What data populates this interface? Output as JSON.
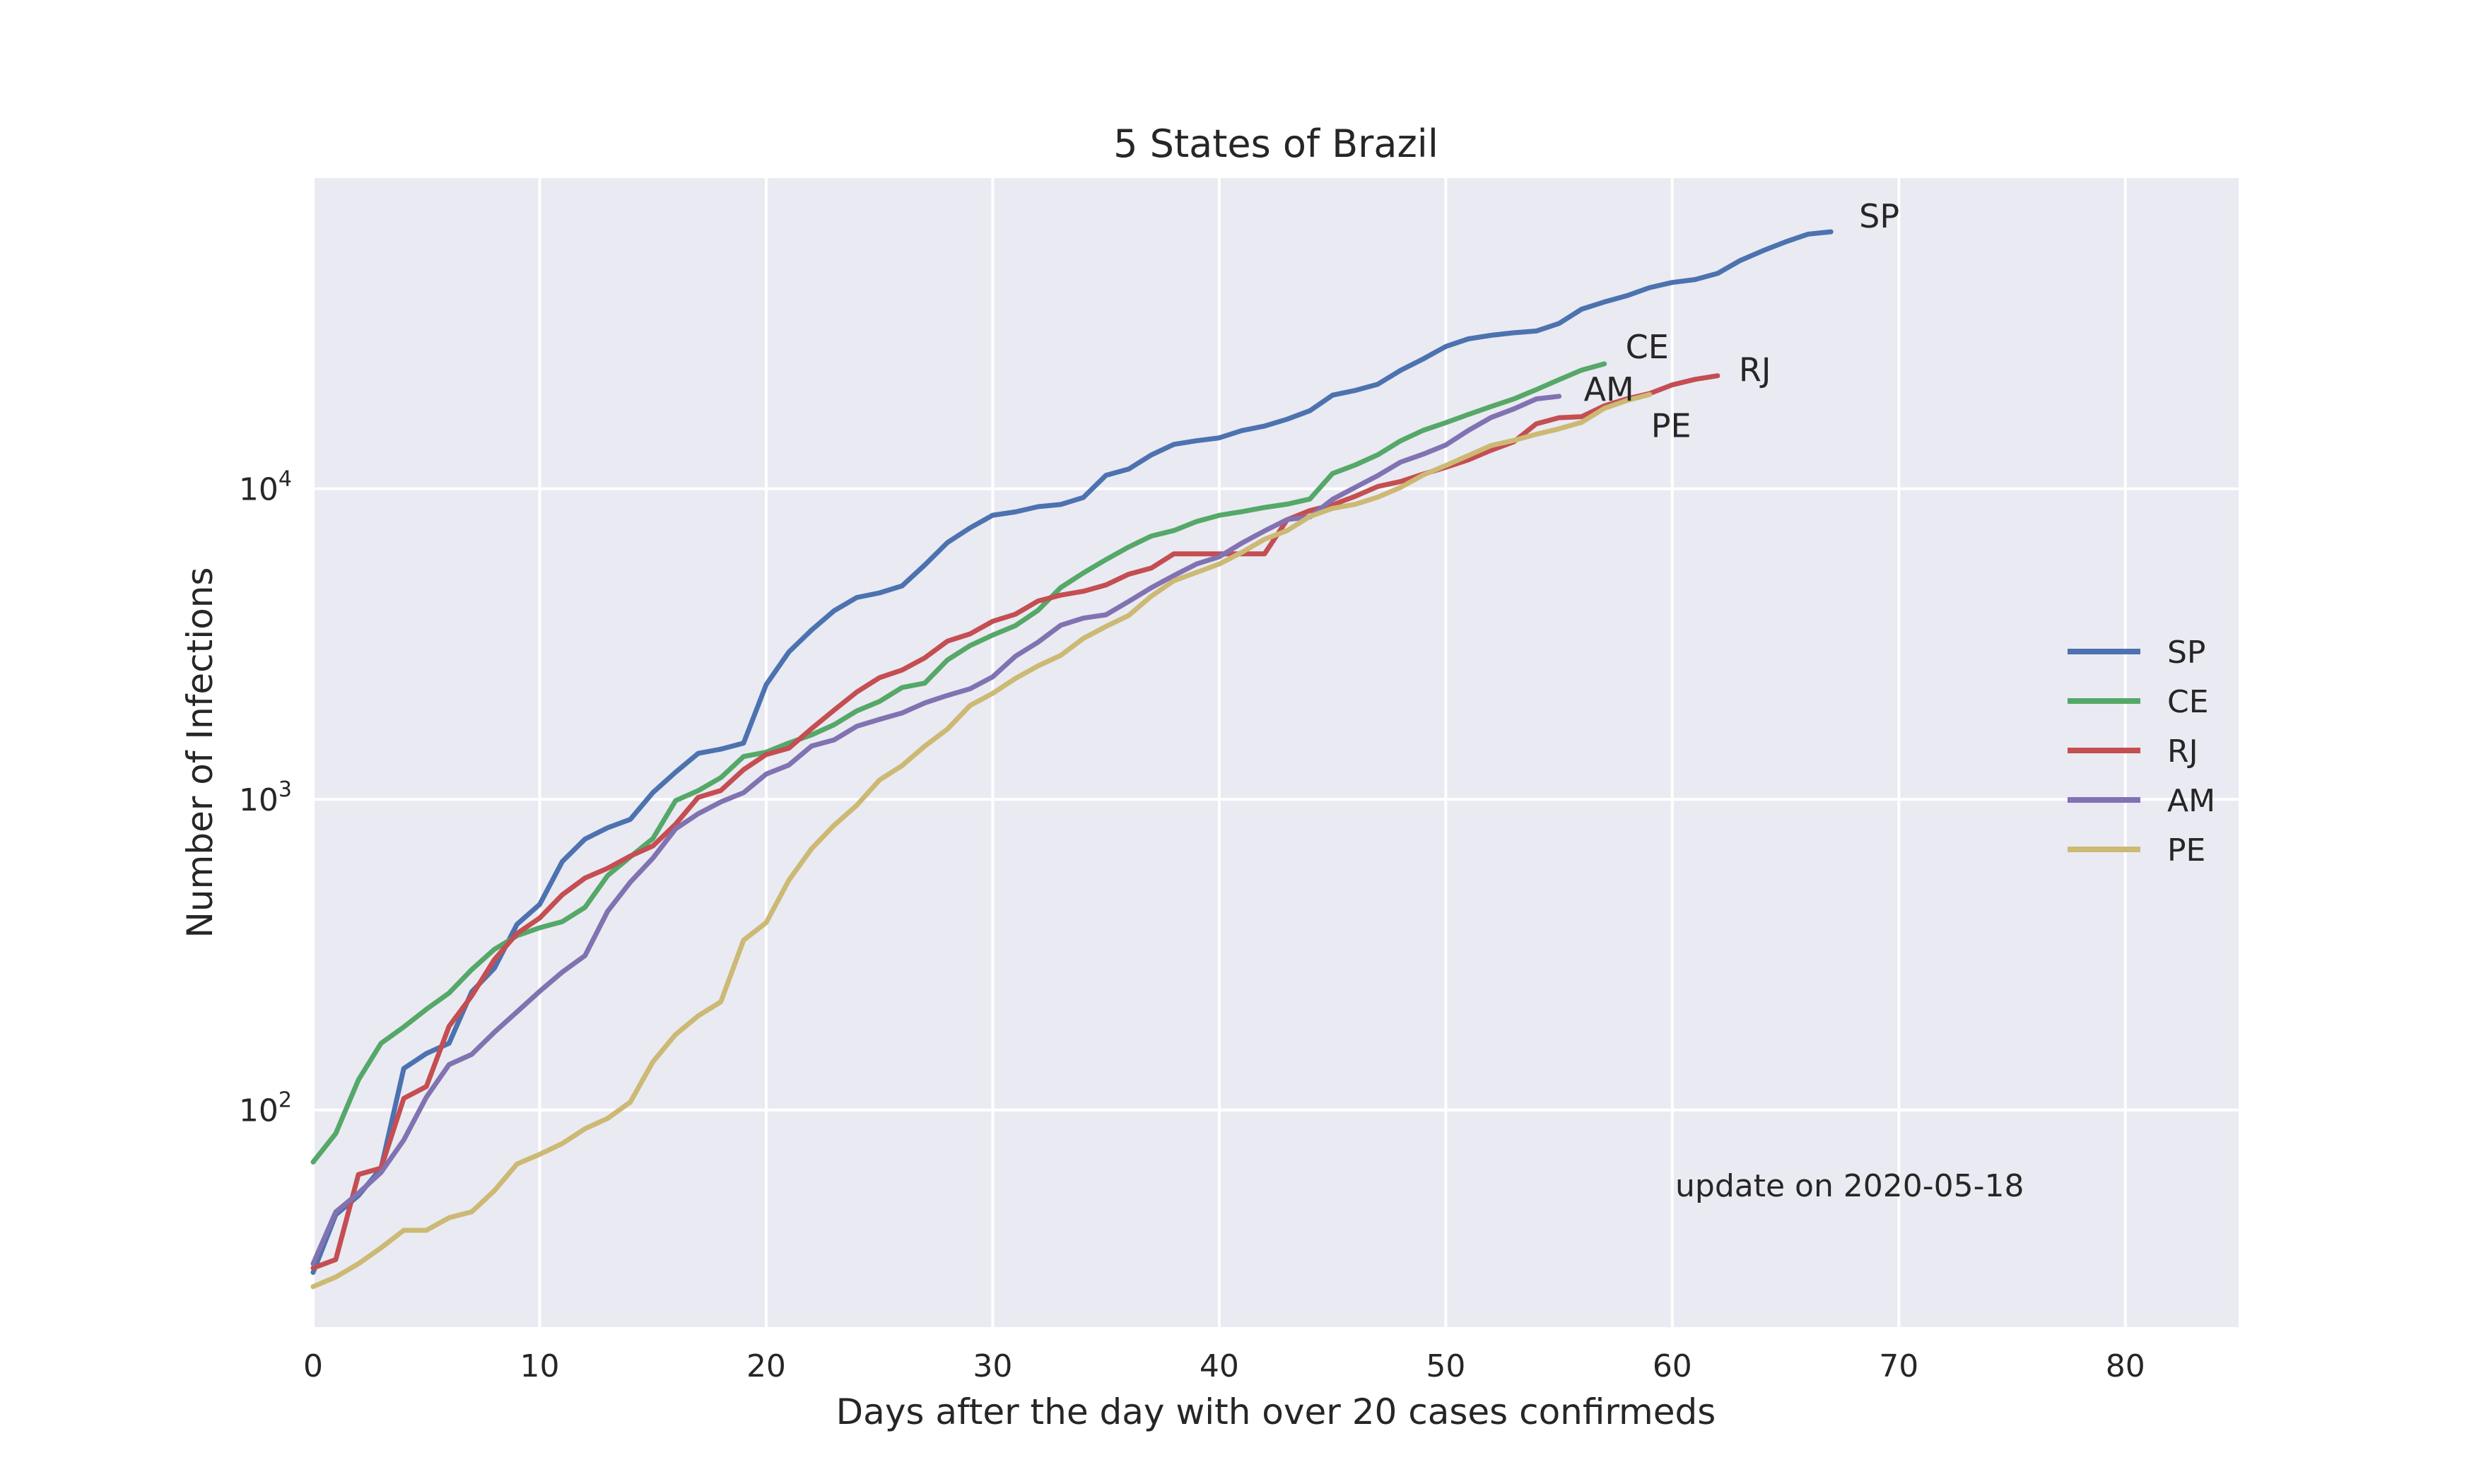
{
  "chart_data": {
    "type": "line",
    "title": "5 States of Brazil",
    "xlabel": "Days after the day with over 20 cases confirmeds",
    "ylabel": "Number of Infections",
    "yscale": "log",
    "xlim": [
      0,
      85
    ],
    "ylim": [
      20,
      100000
    ],
    "xticks": [
      0,
      10,
      20,
      30,
      40,
      50,
      60,
      70,
      80
    ],
    "yticks": [
      {
        "value": 100,
        "base": "10",
        "exp": "2"
      },
      {
        "value": 1000,
        "base": "10",
        "exp": "3"
      },
      {
        "value": 10000,
        "base": "10",
        "exp": "4"
      }
    ],
    "grid": true,
    "legend_position": "right",
    "annotation": "update on 2020-05-18",
    "series": [
      {
        "name": "SP",
        "color": "#4c72b0",
        "values": [
          30,
          46,
          53,
          65,
          136,
          152,
          164,
          240,
          286,
          396,
          459,
          631,
          745,
          810,
          862,
          1052,
          1223,
          1406,
          1451,
          1517,
          2339,
          2981,
          3506,
          4048,
          4466,
          4620,
          4866,
          5682,
          6708,
          7480,
          8216,
          8419,
          8755,
          8895,
          9371,
          11043,
          11568,
          12841,
          13894,
          14267,
          14580,
          15385,
          15914,
          16740,
          17826,
          20004,
          20715,
          21696,
          24041,
          26158,
          28698,
          30374,
          31174,
          31772,
          32187,
          34053,
          37853,
          39928,
          41830,
          44411,
          46131,
          47142,
          49326,
          54286,
          58378,
          62345,
          65995,
          67143
        ]
      },
      {
        "name": "CE",
        "color": "#55a868",
        "values": [
          68,
          84,
          125,
          164,
          185,
          211,
          238,
          283,
          329,
          364,
          386,
          404,
          449,
          568,
          653,
          748,
          991,
          1067,
          1175,
          1373,
          1419,
          1519,
          1612,
          1739,
          1926,
          2066,
          2291,
          2367,
          2811,
          3125,
          3379,
          3623,
          4059,
          4805,
          5356,
          5914,
          6491,
          7038,
          7335,
          7842,
          8212,
          8433,
          8704,
          8919,
          9263,
          11190,
          11924,
          12860,
          14254,
          15411,
          16321,
          17338,
          18386,
          19451,
          20853,
          22434,
          24091,
          25232
        ]
      },
      {
        "name": "RJ",
        "color": "#c44e52",
        "values": [
          31,
          33,
          62,
          65,
          109,
          119,
          186,
          233,
          305,
          370,
          415,
          493,
          558,
          600,
          657,
          708,
          832,
          1015,
          1068,
          1246,
          1394,
          1461,
          1688,
          1938,
          2216,
          2464,
          2608,
          2855,
          3231,
          3410,
          3743,
          3944,
          4349,
          4543,
          4675,
          4899,
          5306,
          5552,
          6172,
          6172,
          6172,
          6172,
          6172,
          7944,
          8504,
          8869,
          9453,
          10166,
          10546,
          11139,
          11721,
          12391,
          13295,
          14156,
          16181,
          16929,
          17062,
          18486,
          19467,
          20251,
          21601,
          22500,
          23100
        ]
      },
      {
        "name": "AM",
        "color": "#8172b2",
        "values": [
          32,
          47,
          54,
          63,
          80,
          110,
          140,
          151,
          178,
          207,
          241,
          278,
          314,
          436,
          541,
          647,
          804,
          899,
          981,
          1050,
          1206,
          1290,
          1484,
          1554,
          1719,
          1809,
          1897,
          2044,
          2160,
          2270,
          2479,
          2888,
          3205,
          3635,
          3833,
          3928,
          4337,
          4801,
          5254,
          5723,
          6038,
          6683,
          7314,
          7957,
          8109,
          9243,
          10099,
          11022,
          12174,
          12919,
          13832,
          15402,
          16952,
          18060,
          19454,
          19835
        ]
      },
      {
        "name": "PE",
        "color": "#ccb974",
        "values": [
          27,
          29,
          32,
          36,
          41,
          41,
          45,
          47,
          55,
          67,
          72,
          78,
          87,
          94,
          106,
          143,
          175,
          201,
          223,
          352,
          401,
          549,
          693,
          826,
          957,
          1154,
          1284,
          1484,
          1683,
          2006,
          2193,
          2450,
          2690,
          2908,
          3298,
          3603,
          3906,
          4507,
          5058,
          5378,
          5724,
          6239,
          6876,
          7334,
          8145,
          8643,
          8907,
          9394,
          10094,
          11070,
          11882,
          12789,
          13768,
          14309,
          14971,
          15588,
          16357,
          18144,
          19232,
          20100
        ]
      }
    ]
  }
}
